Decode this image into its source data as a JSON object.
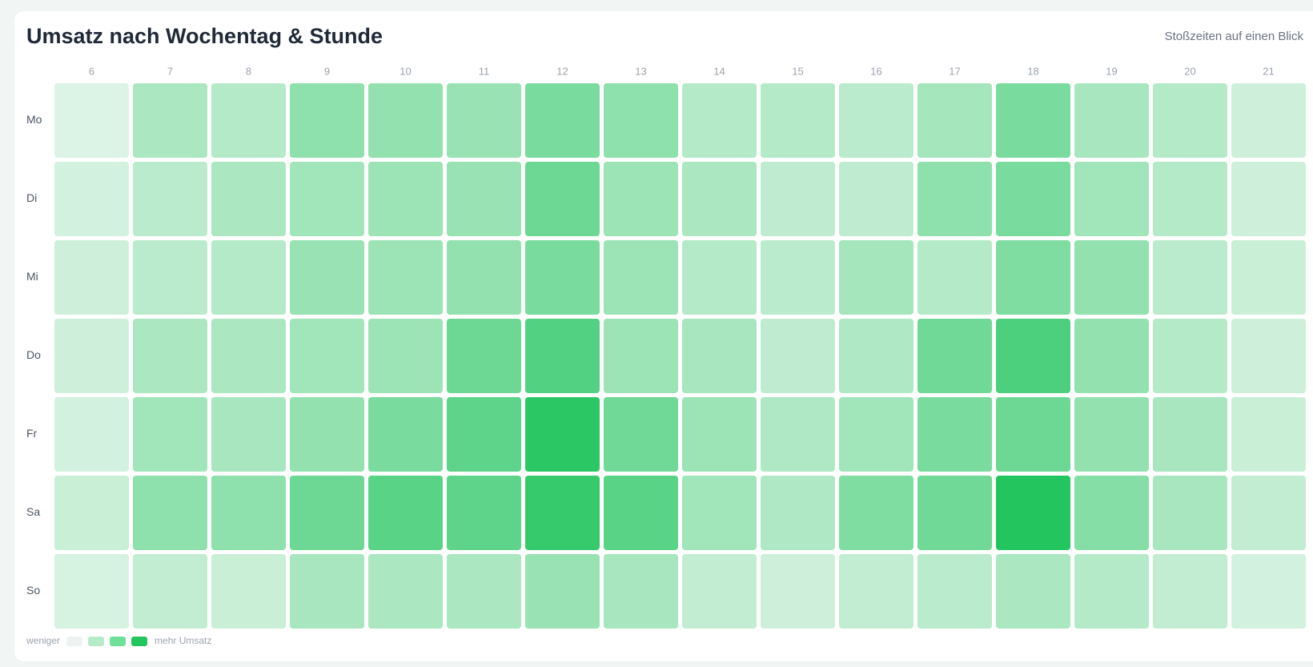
{
  "chart_data": {
    "type": "heatmap",
    "title": "Umsatz nach Wochentag & Stunde",
    "subtitle": "Stoßzeiten auf einen Blick",
    "x": [
      6,
      7,
      8,
      9,
      10,
      11,
      12,
      13,
      14,
      15,
      16,
      17,
      18,
      19,
      20,
      21
    ],
    "categories": [
      "Mo",
      "Di",
      "Mi",
      "Do",
      "Fr",
      "Sa",
      "So"
    ],
    "values": [
      [
        5,
        30,
        25,
        45,
        42,
        40,
        55,
        45,
        25,
        25,
        22,
        33,
        55,
        32,
        25,
        12
      ],
      [
        10,
        22,
        30,
        35,
        38,
        40,
        62,
        38,
        30,
        20,
        20,
        45,
        55,
        35,
        25,
        12
      ],
      [
        12,
        22,
        25,
        40,
        38,
        42,
        55,
        38,
        25,
        22,
        33,
        25,
        52,
        42,
        22,
        15
      ],
      [
        12,
        30,
        30,
        35,
        38,
        62,
        75,
        38,
        32,
        20,
        28,
        60,
        78,
        42,
        25,
        12
      ],
      [
        10,
        35,
        32,
        42,
        55,
        70,
        95,
        60,
        38,
        28,
        35,
        55,
        62,
        42,
        32,
        15
      ],
      [
        15,
        45,
        45,
        62,
        72,
        70,
        90,
        72,
        35,
        28,
        52,
        60,
        100,
        50,
        32,
        18
      ],
      [
        8,
        18,
        15,
        32,
        30,
        30,
        40,
        32,
        18,
        12,
        18,
        22,
        30,
        25,
        18,
        10
      ]
    ],
    "value_range": [
      0,
      100
    ],
    "color_scale": [
      "#e6f6ec",
      "#22c55e"
    ],
    "legend": {
      "low_label": "weniger",
      "high_label": "mehr Umsatz",
      "colors": [
        "#eef2f0",
        "#b6ebc9",
        "#6ee09a",
        "#22c55e"
      ]
    }
  }
}
